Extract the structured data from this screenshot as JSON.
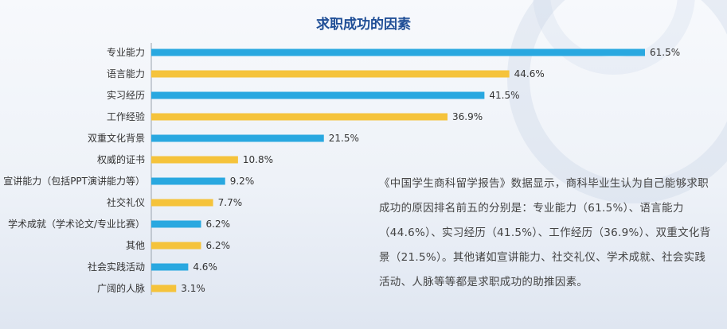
{
  "chart_data": {
    "type": "bar",
    "orientation": "horizontal",
    "title": "求职成功的因素",
    "categories": [
      "专业能力",
      "语言能力",
      "实习经历",
      "工作经验",
      "双重文化背景",
      "权威的证书",
      "宣讲能力（包括PPT演讲能力等）",
      "社交礼仪",
      "学术成就（学术论文/专业比赛）",
      "其他",
      "社会实践活动",
      "广阔的人脉"
    ],
    "values": [
      61.5,
      44.6,
      41.5,
      36.9,
      21.5,
      10.8,
      9.2,
      7.7,
      6.2,
      6.2,
      4.6,
      3.1
    ],
    "value_labels": [
      "61.5%",
      "44.6%",
      "41.5%",
      "36.9%",
      "21.5%",
      "10.8%",
      "9.2%",
      "7.7%",
      "6.2%",
      "6.2%",
      "4.6%",
      "3.1%"
    ],
    "bar_colors": [
      "#29a8e0",
      "#f5c33b"
    ],
    "xlim": [
      0,
      61.5
    ],
    "grid": false,
    "legend": "none"
  },
  "note": "《中国学生商科留学报告》数据显示，商科毕业生认为自己能够求职成功的原因排名前五的分别是：专业能力（61.5%）、语言能力（44.6%）、实习经历（41.5%）、工作经历（36.9%）、双重文化背景（21.5%）。其他诸如宣讲能力、社交礼仪、学术成就、社会实践活动、人脉等等都是求职成功的助推因素。"
}
